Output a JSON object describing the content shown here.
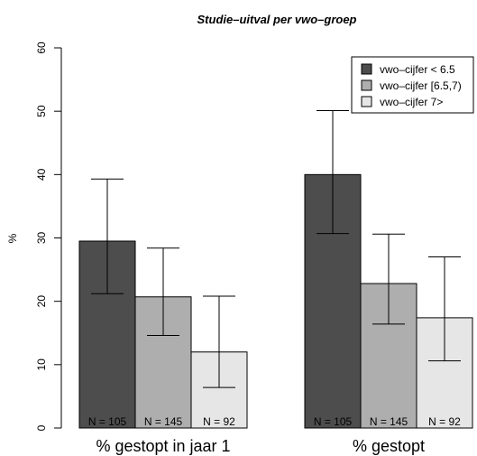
{
  "chart_data": {
    "type": "bar",
    "title": "Studie–uitval per vwo–groep",
    "ylabel": "%",
    "xlabel": "",
    "ylim": [
      0,
      60
    ],
    "yticks": [
      0,
      10,
      20,
      30,
      40,
      50,
      60
    ],
    "categories": [
      "% gestopt in jaar 1",
      "% gestopt"
    ],
    "series": [
      {
        "name": "vwo–cijfer < 6.5",
        "color": "#4d4d4d",
        "values": [
          29.5,
          40.0
        ],
        "err_low": [
          21.2,
          30.7
        ],
        "err_high": [
          39.3,
          50.1
        ],
        "n_labels": [
          "N = 105",
          "N = 105"
        ],
        "n_label_color": "#000000"
      },
      {
        "name": "vwo–cijfer [6.5,7)",
        "color": "#aeaeae",
        "values": [
          20.7,
          22.8
        ],
        "err_low": [
          14.6,
          16.4
        ],
        "err_high": [
          28.4,
          30.6
        ],
        "n_labels": [
          "N = 145",
          "N = 145"
        ],
        "n_label_color": "#ffffff"
      },
      {
        "name": "vwo–cijfer 7>",
        "color": "#e6e6e6",
        "values": [
          12.0,
          17.4
        ],
        "err_low": [
          6.4,
          10.6
        ],
        "err_high": [
          20.8,
          27.0
        ],
        "n_labels": [
          "N = 92",
          "N = 92"
        ],
        "n_label_color": "#ffffff"
      }
    ],
    "legend_position": "top-right",
    "grid": false
  }
}
